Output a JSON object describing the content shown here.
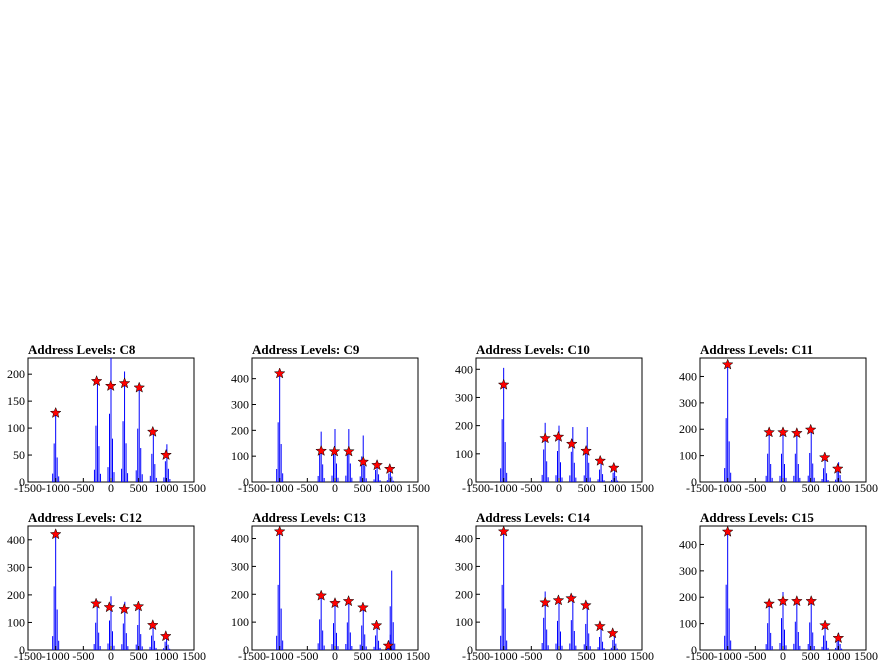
{
  "colors": {
    "histogram": "#0000ff",
    "marker": "#ff0000",
    "marker_edge": "#000000",
    "axes": "#000000"
  },
  "chart_data": [
    {
      "type": "bar",
      "title": "Address Levels: C8",
      "xlim": [
        -1500,
        1500
      ],
      "ylim": [
        0,
        230
      ],
      "xticks": [
        -1500,
        -1000,
        -500,
        0,
        500,
        1000,
        1500
      ],
      "yticks": [
        0,
        50,
        100,
        150,
        200
      ],
      "spikes": [
        {
          "x": -1000,
          "y": 130
        },
        {
          "x": -245,
          "y": 190
        },
        {
          "x": 0,
          "y": 230
        },
        {
          "x": 245,
          "y": 205
        },
        {
          "x": 510,
          "y": 180
        },
        {
          "x": 765,
          "y": 95
        },
        {
          "x": 1010,
          "y": 70
        }
      ],
      "markers": [
        {
          "x": -1000,
          "y": 128
        },
        {
          "x": -260,
          "y": 187
        },
        {
          "x": -5,
          "y": 178
        },
        {
          "x": 245,
          "y": 183
        },
        {
          "x": 510,
          "y": 175
        },
        {
          "x": 755,
          "y": 93
        },
        {
          "x": 995,
          "y": 50
        }
      ]
    },
    {
      "type": "bar",
      "title": "Address Levels: C9",
      "xlim": [
        -1500,
        1500
      ],
      "ylim": [
        0,
        480
      ],
      "xticks": [
        -1500,
        -1000,
        -500,
        0,
        500,
        1000,
        1500
      ],
      "yticks": [
        0,
        100,
        200,
        300,
        400
      ],
      "spikes": [
        {
          "x": -1000,
          "y": 420
        },
        {
          "x": -250,
          "y": 195
        },
        {
          "x": 0,
          "y": 205
        },
        {
          "x": 250,
          "y": 205
        },
        {
          "x": 510,
          "y": 180
        },
        {
          "x": 760,
          "y": 85
        },
        {
          "x": 1000,
          "y": 60
        }
      ],
      "markers": [
        {
          "x": -1000,
          "y": 420
        },
        {
          "x": -250,
          "y": 120
        },
        {
          "x": -10,
          "y": 118
        },
        {
          "x": 250,
          "y": 118
        },
        {
          "x": 510,
          "y": 78
        },
        {
          "x": 760,
          "y": 65
        },
        {
          "x": 990,
          "y": 50
        }
      ]
    },
    {
      "type": "bar",
      "title": "Address Levels: C10",
      "xlim": [
        -1500,
        1500
      ],
      "ylim": [
        0,
        440
      ],
      "xticks": [
        -1500,
        -1000,
        -500,
        0,
        500,
        1000,
        1500
      ],
      "yticks": [
        0,
        100,
        200,
        300,
        400
      ],
      "spikes": [
        {
          "x": -1000,
          "y": 405
        },
        {
          "x": -250,
          "y": 210
        },
        {
          "x": 0,
          "y": 200
        },
        {
          "x": 250,
          "y": 195
        },
        {
          "x": 510,
          "y": 195
        },
        {
          "x": 760,
          "y": 80
        },
        {
          "x": 1005,
          "y": 60
        }
      ],
      "markers": [
        {
          "x": -1000,
          "y": 345
        },
        {
          "x": -250,
          "y": 155
        },
        {
          "x": -10,
          "y": 160
        },
        {
          "x": 230,
          "y": 135
        },
        {
          "x": 490,
          "y": 110
        },
        {
          "x": 745,
          "y": 75
        },
        {
          "x": 990,
          "y": 50
        }
      ]
    },
    {
      "type": "bar",
      "title": "Address Levels: C11",
      "xlim": [
        -1500,
        1500
      ],
      "ylim": [
        0,
        470
      ],
      "xticks": [
        -1500,
        -1000,
        -500,
        0,
        500,
        1000,
        1500
      ],
      "yticks": [
        0,
        100,
        200,
        300,
        400
      ],
      "spikes": [
        {
          "x": -1000,
          "y": 440
        },
        {
          "x": -250,
          "y": 195
        },
        {
          "x": 0,
          "y": 195
        },
        {
          "x": 250,
          "y": 195
        },
        {
          "x": 510,
          "y": 200
        },
        {
          "x": 760,
          "y": 95
        },
        {
          "x": 1005,
          "y": 75
        }
      ],
      "markers": [
        {
          "x": -1000,
          "y": 445
        },
        {
          "x": -250,
          "y": 188
        },
        {
          "x": 0,
          "y": 188
        },
        {
          "x": 250,
          "y": 185
        },
        {
          "x": 500,
          "y": 198
        },
        {
          "x": 755,
          "y": 93
        },
        {
          "x": 990,
          "y": 50
        }
      ]
    },
    {
      "type": "bar",
      "title": "Address Levels: C12",
      "xlim": [
        -1500,
        1500
      ],
      "ylim": [
        0,
        450
      ],
      "xticks": [
        -1500,
        -1000,
        -500,
        0,
        500,
        1000,
        1500
      ],
      "yticks": [
        0,
        100,
        200,
        300,
        400
      ],
      "spikes": [
        {
          "x": -1000,
          "y": 420
        },
        {
          "x": -250,
          "y": 180
        },
        {
          "x": 0,
          "y": 195
        },
        {
          "x": 250,
          "y": 175
        },
        {
          "x": 510,
          "y": 165
        },
        {
          "x": 760,
          "y": 95
        },
        {
          "x": 1005,
          "y": 55
        }
      ],
      "markers": [
        {
          "x": -1000,
          "y": 420
        },
        {
          "x": -270,
          "y": 168
        },
        {
          "x": -30,
          "y": 155
        },
        {
          "x": 240,
          "y": 148
        },
        {
          "x": 495,
          "y": 158
        },
        {
          "x": 755,
          "y": 90
        },
        {
          "x": 990,
          "y": 50
        }
      ]
    },
    {
      "type": "bar",
      "title": "Address Levels: C13",
      "xlim": [
        -1500,
        1500
      ],
      "ylim": [
        0,
        445
      ],
      "xticks": [
        -1500,
        -1000,
        -500,
        0,
        500,
        1000,
        1500
      ],
      "yticks": [
        0,
        100,
        200,
        300,
        400
      ],
      "spikes": [
        {
          "x": -1000,
          "y": 425
        },
        {
          "x": -250,
          "y": 200
        },
        {
          "x": 0,
          "y": 175
        },
        {
          "x": 250,
          "y": 180
        },
        {
          "x": 510,
          "y": 160
        },
        {
          "x": 760,
          "y": 95
        },
        {
          "x": 1000,
          "y": 55
        },
        {
          "x": 1025,
          "y": 285
        }
      ],
      "markers": [
        {
          "x": -1000,
          "y": 425
        },
        {
          "x": -250,
          "y": 195
        },
        {
          "x": 0,
          "y": 168
        },
        {
          "x": 245,
          "y": 175
        },
        {
          "x": 505,
          "y": 152
        },
        {
          "x": 750,
          "y": 88
        },
        {
          "x": 965,
          "y": 15
        }
      ]
    },
    {
      "type": "bar",
      "title": "Address Levels: C14",
      "xlim": [
        -1500,
        1500
      ],
      "ylim": [
        0,
        445
      ],
      "xticks": [
        -1500,
        -1000,
        -500,
        0,
        500,
        1000,
        1500
      ],
      "yticks": [
        0,
        100,
        200,
        300,
        400
      ],
      "spikes": [
        {
          "x": -1000,
          "y": 425
        },
        {
          "x": -250,
          "y": 210
        },
        {
          "x": 0,
          "y": 190
        },
        {
          "x": 250,
          "y": 195
        },
        {
          "x": 510,
          "y": 170
        },
        {
          "x": 760,
          "y": 85
        },
        {
          "x": 1000,
          "y": 65
        }
      ],
      "markers": [
        {
          "x": -1000,
          "y": 425
        },
        {
          "x": -250,
          "y": 170
        },
        {
          "x": -10,
          "y": 178
        },
        {
          "x": 220,
          "y": 185
        },
        {
          "x": 485,
          "y": 160
        },
        {
          "x": 740,
          "y": 85
        },
        {
          "x": 970,
          "y": 60
        }
      ]
    },
    {
      "type": "bar",
      "title": "Address Levels: C15",
      "xlim": [
        -1500,
        1500
      ],
      "ylim": [
        0,
        470
      ],
      "xticks": [
        -1500,
        -1000,
        -500,
        0,
        500,
        1000,
        1500
      ],
      "yticks": [
        0,
        100,
        200,
        300,
        400
      ],
      "spikes": [
        {
          "x": -1000,
          "y": 450
        },
        {
          "x": -250,
          "y": 185
        },
        {
          "x": 0,
          "y": 220
        },
        {
          "x": 250,
          "y": 195
        },
        {
          "x": 510,
          "y": 190
        },
        {
          "x": 760,
          "y": 100
        },
        {
          "x": 1005,
          "y": 65
        }
      ],
      "markers": [
        {
          "x": -1000,
          "y": 448
        },
        {
          "x": -250,
          "y": 175
        },
        {
          "x": 0,
          "y": 185
        },
        {
          "x": 250,
          "y": 185
        },
        {
          "x": 510,
          "y": 185
        },
        {
          "x": 760,
          "y": 93
        },
        {
          "x": 1000,
          "y": 45
        }
      ]
    }
  ]
}
